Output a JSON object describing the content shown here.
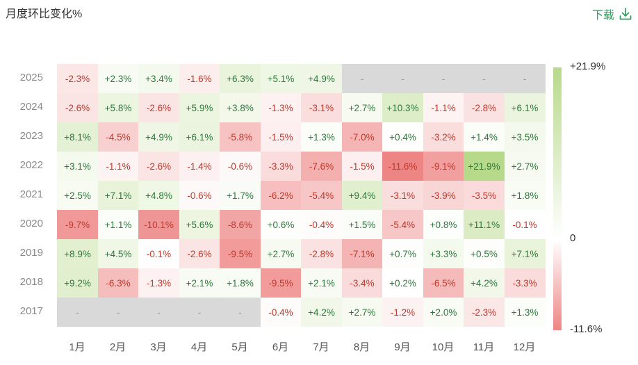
{
  "title": "月度环比变化%",
  "download_label": "下载",
  "colors": {
    "positive_max": "#b7d98a",
    "neutral": "#ffffff",
    "negative_max": "#ee8585",
    "missing": "#d9d9d9",
    "positive_text": "#2a7a3b",
    "negative_text": "#c0392b",
    "missing_text": "#9a9a9a",
    "accent": "#2f9e5b"
  },
  "chart_data": {
    "type": "heatmap",
    "title": "月度环比变化%",
    "x_categories": [
      "1月",
      "2月",
      "3月",
      "4月",
      "5月",
      "6月",
      "7月",
      "8月",
      "9月",
      "10月",
      "11月",
      "12月"
    ],
    "y_categories": [
      "2025",
      "2024",
      "2023",
      "2022",
      "2021",
      "2020",
      "2019",
      "2018",
      "2017"
    ],
    "values": [
      [
        -2.3,
        2.3,
        3.4,
        -1.6,
        6.3,
        5.1,
        4.9,
        null,
        null,
        null,
        null,
        null
      ],
      [
        -2.6,
        5.8,
        -2.6,
        5.9,
        3.8,
        -1.3,
        -3.1,
        2.7,
        10.3,
        -1.1,
        -2.8,
        6.1
      ],
      [
        8.1,
        -4.5,
        4.9,
        6.1,
        -5.8,
        -1.5,
        1.3,
        -7.0,
        0.4,
        -3.2,
        1.4,
        3.5
      ],
      [
        3.1,
        -1.1,
        -2.6,
        -1.4,
        -0.6,
        -3.3,
        -7.6,
        -1.5,
        -11.6,
        -9.1,
        21.9,
        2.7
      ],
      [
        2.5,
        7.1,
        4.8,
        -0.6,
        1.7,
        -6.2,
        -5.4,
        9.4,
        -3.1,
        -3.9,
        -3.5,
        1.8
      ],
      [
        -9.7,
        1.1,
        -10.1,
        5.6,
        -8.6,
        0.6,
        -0.4,
        1.5,
        -5.4,
        0.8,
        11.1,
        -0.1
      ],
      [
        8.9,
        4.5,
        -0.1,
        -2.6,
        -9.5,
        2.7,
        -2.8,
        -7.1,
        0.7,
        3.3,
        0.5,
        7.1
      ],
      [
        9.2,
        -6.3,
        -1.3,
        2.1,
        1.8,
        -9.5,
        2.1,
        -3.4,
        0.2,
        -6.5,
        4.2,
        -3.3
      ],
      [
        null,
        null,
        null,
        null,
        null,
        -0.4,
        4.2,
        2.7,
        -1.2,
        2.0,
        -2.3,
        1.3
      ]
    ],
    "labels": [
      [
        "-2.3%",
        "+2.3%",
        "+3.4%",
        "-1.6%",
        "+6.3%",
        "+5.1%",
        "+4.9%",
        "-",
        "-",
        "-",
        "-",
        "-"
      ],
      [
        "-2.6%",
        "+5.8%",
        "-2.6%",
        "+5.9%",
        "+3.8%",
        "-1.3%",
        "-3.1%",
        "+2.7%",
        "+10.3%",
        "-1.1%",
        "-2.8%",
        "+6.1%"
      ],
      [
        "+8.1%",
        "-4.5%",
        "+4.9%",
        "+6.1%",
        "-5.8%",
        "-1.5%",
        "+1.3%",
        "-7.0%",
        "+0.4%",
        "-3.2%",
        "+1.4%",
        "+3.5%"
      ],
      [
        "+3.1%",
        "-1.1%",
        "-2.6%",
        "-1.4%",
        "-0.6%",
        "-3.3%",
        "-7.6%",
        "-1.5%",
        "-11.6%",
        "-9.1%",
        "+21.9%",
        "+2.7%"
      ],
      [
        "+2.5%",
        "+7.1%",
        "+4.8%",
        "-0.6%",
        "+1.7%",
        "-6.2%",
        "-5.4%",
        "+9.4%",
        "-3.1%",
        "-3.9%",
        "-3.5%",
        "+1.8%"
      ],
      [
        "-9.7%",
        "+1.1%",
        "-10.1%",
        "+5.6%",
        "-8.6%",
        "+0.6%",
        "-0.4%",
        "+1.5%",
        "-5.4%",
        "+0.8%",
        "+11.1%",
        "-0.1%"
      ],
      [
        "+8.9%",
        "+4.5%",
        "-0.1%",
        "-2.6%",
        "-9.5%",
        "+2.7%",
        "-2.8%",
        "-7.1%",
        "+0.7%",
        "+3.3%",
        "+0.5%",
        "+7.1%"
      ],
      [
        "+9.2%",
        "-6.3%",
        "-1.3%",
        "+2.1%",
        "+1.8%",
        "-9.5%",
        "+2.1%",
        "-3.4%",
        "+0.2%",
        "-6.5%",
        "+4.2%",
        "-3.3%"
      ],
      [
        "-",
        "-",
        "-",
        "-",
        "-",
        "-0.4%",
        "+4.2%",
        "+2.7%",
        "-1.2%",
        "+2.0%",
        "-2.3%",
        "+1.3%"
      ]
    ],
    "color_scale": {
      "min": -11.6,
      "mid": 0,
      "max": 21.9
    },
    "legend": {
      "max_label": "+21.9%",
      "mid_label": "0",
      "min_label": "-11.6%",
      "placement": "right"
    }
  }
}
